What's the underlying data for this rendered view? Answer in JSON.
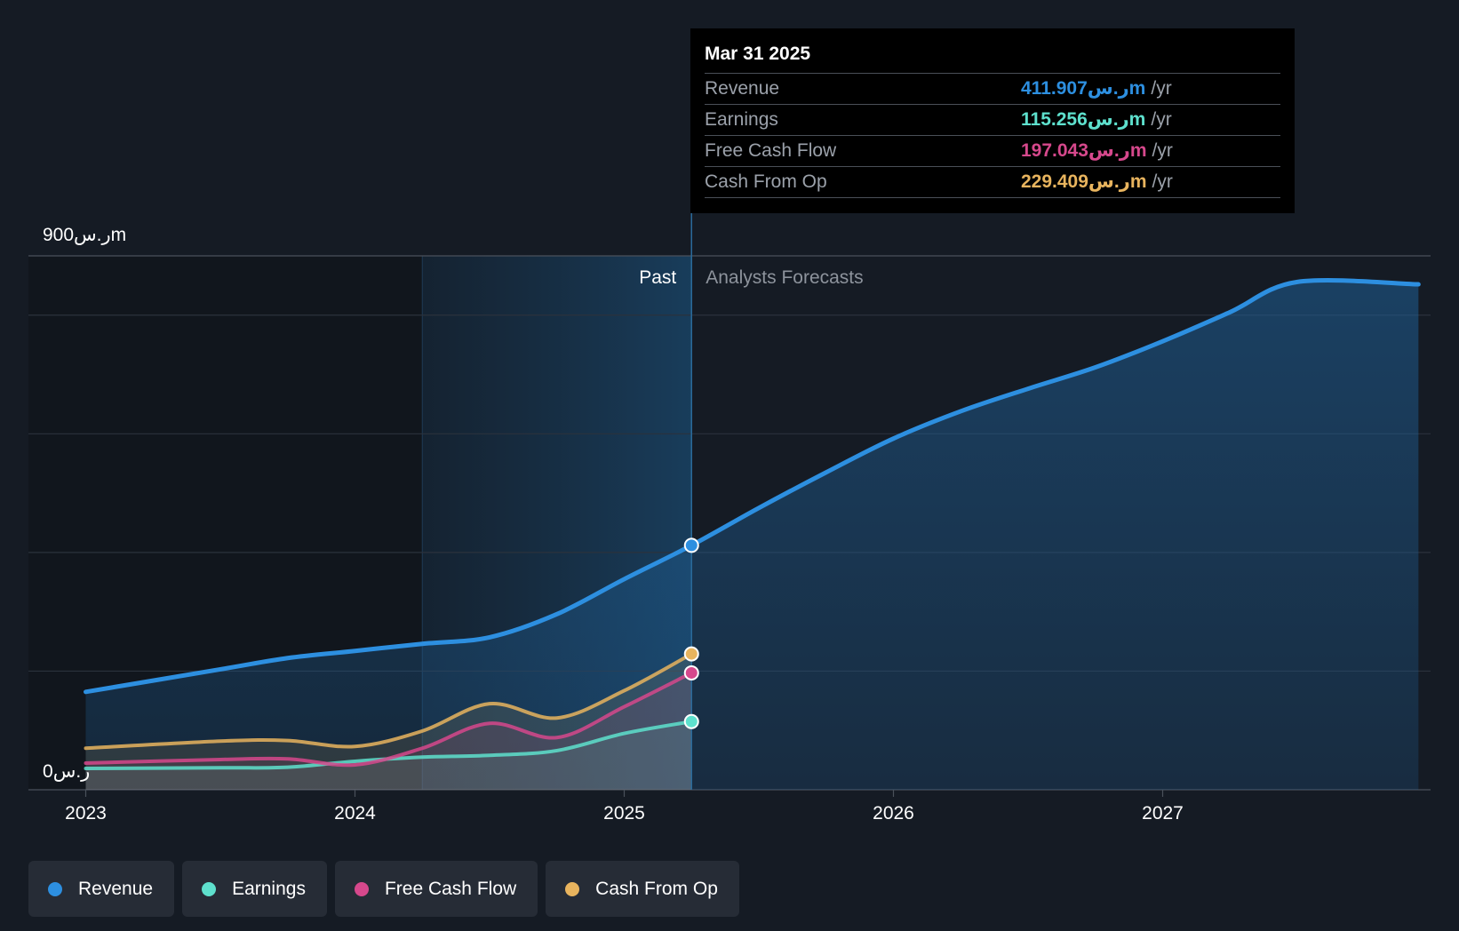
{
  "chart_data": {
    "type": "area",
    "y_top_label": "900ر.سm",
    "y_bottom_label": "0ر.س",
    "ylim": [
      0,
      900
    ],
    "xlim": [
      2023.0,
      2027.95
    ],
    "x_ticks": [
      {
        "value": 2023,
        "label": "2023"
      },
      {
        "value": 2024,
        "label": "2024"
      },
      {
        "value": 2025,
        "label": "2025"
      },
      {
        "value": 2026,
        "label": "2026"
      },
      {
        "value": 2027,
        "label": "2027"
      }
    ],
    "gridlines": [
      0,
      200,
      400,
      600,
      800,
      900
    ],
    "past_label": "Past",
    "forecast_label": "Analysts Forecasts",
    "past_region_start": 2024.25,
    "divider_x": 2025.25,
    "series": [
      {
        "name": "Revenue",
        "key": "revenue",
        "color": "#2d8fe0",
        "points": [
          [
            2023.0,
            165
          ],
          [
            2023.5,
            203
          ],
          [
            2023.75,
            222
          ],
          [
            2024.0,
            234
          ],
          [
            2024.25,
            246
          ],
          [
            2024.5,
            257
          ],
          [
            2024.75,
            296
          ],
          [
            2025.0,
            355
          ],
          [
            2025.25,
            412
          ],
          [
            2025.5,
            475
          ],
          [
            2025.75,
            535
          ],
          [
            2026.0,
            592
          ],
          [
            2026.25,
            638
          ],
          [
            2026.5,
            676
          ],
          [
            2026.75,
            712
          ],
          [
            2027.0,
            756
          ],
          [
            2027.25,
            805
          ],
          [
            2027.5,
            856
          ],
          [
            2027.95,
            852
          ]
        ]
      },
      {
        "name": "Earnings",
        "key": "earnings",
        "color": "#5ee0cd",
        "points": [
          [
            2023.0,
            36
          ],
          [
            2023.5,
            37
          ],
          [
            2023.75,
            38
          ],
          [
            2024.0,
            48
          ],
          [
            2024.25,
            55
          ],
          [
            2024.5,
            58
          ],
          [
            2024.75,
            66
          ],
          [
            2025.0,
            95
          ],
          [
            2025.25,
            115
          ]
        ]
      },
      {
        "name": "Free Cash Flow",
        "key": "fcf",
        "color": "#d6488c",
        "points": [
          [
            2023.0,
            45
          ],
          [
            2023.5,
            51
          ],
          [
            2023.75,
            52
          ],
          [
            2024.0,
            42
          ],
          [
            2024.25,
            70
          ],
          [
            2024.5,
            112
          ],
          [
            2024.75,
            88
          ],
          [
            2025.0,
            140
          ],
          [
            2025.25,
            197
          ]
        ]
      },
      {
        "name": "Cash From Op",
        "key": "cfo",
        "color": "#e8b45e",
        "points": [
          [
            2023.0,
            70
          ],
          [
            2023.5,
            82
          ],
          [
            2023.75,
            83
          ],
          [
            2024.0,
            73
          ],
          [
            2024.25,
            99
          ],
          [
            2024.5,
            145
          ],
          [
            2024.75,
            121
          ],
          [
            2025.0,
            167
          ],
          [
            2025.25,
            229
          ]
        ]
      }
    ]
  },
  "tooltip": {
    "date": "Mar 31 2025",
    "rows": [
      {
        "label": "Revenue",
        "value": "411.907ر.سm",
        "unit": "/yr",
        "color": "#2d8fe0"
      },
      {
        "label": "Earnings",
        "value": "115.256ر.سm",
        "unit": "/yr",
        "color": "#5ee0cd"
      },
      {
        "label": "Free Cash Flow",
        "value": "197.043ر.سm",
        "unit": "/yr",
        "color": "#d6488c"
      },
      {
        "label": "Cash From Op",
        "value": "229.409ر.سm",
        "unit": "/yr",
        "color": "#e8b45e"
      }
    ]
  },
  "legend": [
    {
      "label": "Revenue",
      "color": "#2d8fe0"
    },
    {
      "label": "Earnings",
      "color": "#5ee0cd"
    },
    {
      "label": "Free Cash Flow",
      "color": "#d6488c"
    },
    {
      "label": "Cash From Op",
      "color": "#e8b45e"
    }
  ]
}
